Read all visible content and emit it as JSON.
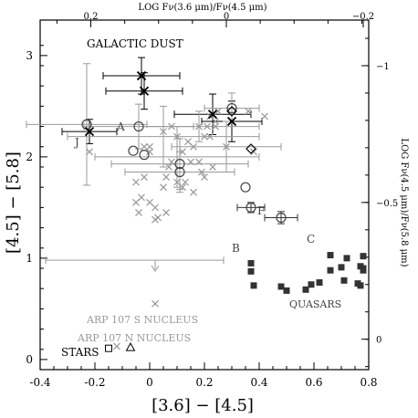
{
  "chart_data": {
    "type": "scatter",
    "xlabel": "[3.6] − [4.5]",
    "ylabel": "[4.5] − [5.8]",
    "top_label": "LOG Fν(3.6 μm)/Fν(4.5 μm)",
    "right_label": "LOG Fν(4.5 μm)/Fν(5.8 μm)",
    "xlim": [
      -0.4,
      0.8
    ],
    "ylim": [
      -0.1,
      3.35
    ],
    "x_ticks": [
      "-0.4",
      "-0.2",
      "0",
      "0.2",
      "0.4",
      "0.6",
      "0.8"
    ],
    "y_ticks": [
      "0",
      "1",
      "2",
      "3"
    ],
    "top_ticks": [
      "0.2",
      "0",
      "−0.2"
    ],
    "right_ticks": [
      "−1",
      "−0.5",
      "0"
    ],
    "annotations": {
      "galactic_dust": "GALACTIC DUST",
      "quasars": "QUASARS",
      "stars": "STARS",
      "arp_s": "ARP 107 S NUCLEUS",
      "arp_n": "ARP 107 N NUCLEUS",
      "lbl_a": "A",
      "lbl_b": "B",
      "lbl_c": "C",
      "lbl_f": "F",
      "lbl_j": "J"
    },
    "series": [
      {
        "name": "gray-crosses",
        "marker": "x",
        "color": "#999999",
        "points": [
          [
            -0.22,
            2.05
          ],
          [
            -0.02,
            2.1
          ],
          [
            0.0,
            2.05
          ],
          [
            -0.05,
            1.75
          ],
          [
            -0.02,
            1.8
          ],
          [
            -0.03,
            1.6
          ],
          [
            -0.05,
            1.55
          ],
          [
            -0.04,
            1.45
          ],
          [
            0.0,
            1.55
          ],
          [
            0.02,
            1.5
          ],
          [
            0.03,
            1.4
          ],
          [
            0.06,
            1.45
          ],
          [
            0.02,
            1.38
          ],
          [
            0.05,
            1.7
          ],
          [
            0.06,
            1.8
          ],
          [
            0.07,
            1.9
          ],
          [
            0.08,
            1.95
          ],
          [
            0.1,
            1.75
          ],
          [
            0.12,
            1.7
          ],
          [
            0.13,
            1.75
          ],
          [
            0.15,
            1.95
          ],
          [
            0.16,
            2.1
          ],
          [
            0.18,
            1.95
          ],
          [
            0.19,
            1.85
          ],
          [
            0.2,
            2.2
          ],
          [
            0.21,
            2.3
          ],
          [
            0.22,
            2.4
          ],
          [
            0.24,
            2.35
          ],
          [
            0.25,
            2.45
          ],
          [
            0.12,
            2.05
          ],
          [
            0.14,
            2.15
          ],
          [
            0.1,
            2.2
          ],
          [
            0.08,
            2.3
          ],
          [
            0.05,
            2.25
          ],
          [
            0.0,
            2.1
          ],
          [
            0.28,
            2.1
          ],
          [
            0.22,
            2.2
          ],
          [
            0.24,
            2.3
          ],
          [
            0.18,
            2.3
          ],
          [
            0.16,
            1.65
          ],
          [
            0.2,
            1.8
          ],
          [
            0.23,
            1.9
          ],
          [
            0.36,
            2.45
          ],
          [
            0.38,
            2.05
          ],
          [
            0.42,
            2.4
          ],
          [
            0.02,
            0.55
          ],
          [
            -0.12,
            0.13
          ]
        ]
      },
      {
        "name": "open-circles",
        "marker": "o",
        "color": "#444444",
        "points": [
          [
            -0.23,
            2.32
          ],
          [
            -0.04,
            2.3
          ],
          [
            -0.06,
            2.06
          ],
          [
            -0.02,
            2.02
          ],
          [
            0.11,
            1.93
          ],
          [
            0.11,
            1.85
          ],
          [
            0.35,
            1.7
          ],
          [
            0.37,
            1.5
          ],
          [
            0.48,
            1.4
          ],
          [
            0.3,
            2.48
          ]
        ]
      },
      {
        "name": "black-crosses",
        "marker": "x",
        "color": "#000000",
        "points": [
          [
            -0.03,
            2.8
          ],
          [
            -0.02,
            2.65
          ],
          [
            0.23,
            2.42
          ],
          [
            0.3,
            2.35
          ],
          [
            -0.22,
            2.25
          ]
        ]
      },
      {
        "name": "diamonds",
        "marker": "diamond",
        "color": "#000000",
        "points": [
          [
            0.3,
            2.45
          ],
          [
            0.37,
            2.08
          ]
        ]
      },
      {
        "name": "quasars",
        "marker": "square-filled",
        "color": "#333333",
        "points": [
          [
            0.37,
            0.95
          ],
          [
            0.37,
            0.87
          ],
          [
            0.38,
            0.73
          ],
          [
            0.48,
            0.72
          ],
          [
            0.5,
            0.68
          ],
          [
            0.57,
            0.69
          ],
          [
            0.59,
            0.74
          ],
          [
            0.62,
            0.76
          ],
          [
            0.66,
            1.03
          ],
          [
            0.66,
            0.88
          ],
          [
            0.7,
            0.91
          ],
          [
            0.71,
            0.78
          ],
          [
            0.72,
            1.0
          ],
          [
            0.76,
            0.75
          ],
          [
            0.77,
            0.92
          ],
          [
            0.78,
            0.9
          ],
          [
            0.78,
            0.88
          ],
          [
            0.77,
            0.73
          ],
          [
            0.78,
            1.02
          ]
        ]
      },
      {
        "name": "stars",
        "marker": "square-open",
        "color": "#000000",
        "points": [
          [
            -0.15,
            0.11
          ]
        ]
      },
      {
        "name": "arp-n",
        "marker": "triangle-open",
        "color": "#000000",
        "points": [
          [
            -0.07,
            0.12
          ]
        ]
      }
    ],
    "error_bars": [
      {
        "x": -0.03,
        "y": 2.8,
        "xerr": 0.14,
        "yerr": 0.18,
        "color": "#000000"
      },
      {
        "x": -0.02,
        "y": 2.65,
        "xerr": 0.14,
        "yerr": 0.18,
        "color": "#000000"
      },
      {
        "x": 0.23,
        "y": 2.42,
        "xerr": 0.14,
        "yerr": 0.2,
        "color": "#000000"
      },
      {
        "x": 0.3,
        "y": 2.35,
        "xerr": 0.11,
        "yerr": 0.2,
        "color": "#000000"
      },
      {
        "x": -0.22,
        "y": 2.25,
        "xerr": 0.1,
        "yerr": 0.12,
        "color": "#000000"
      },
      {
        "x": -0.23,
        "y": 2.32,
        "xerr": 0.22,
        "yerr": 0.6,
        "color": "#999999"
      },
      {
        "x": -0.04,
        "y": 2.3,
        "xerr": 0.2,
        "yerr": 0.22,
        "color": "#999999"
      },
      {
        "x": 0.11,
        "y": 1.93,
        "xerr": 0.25,
        "yerr": 0.25,
        "color": "#999999"
      },
      {
        "x": 0.11,
        "y": 1.85,
        "xerr": 0.2,
        "yerr": 0.2,
        "color": "#999999"
      },
      {
        "x": 0.37,
        "y": 1.5,
        "xerr": 0.05,
        "yerr": 0.05,
        "color": "#333333"
      },
      {
        "x": 0.48,
        "y": 1.4,
        "xerr": 0.06,
        "yerr": 0.06,
        "color": "#333333"
      },
      {
        "x": 0.3,
        "y": 2.48,
        "xerr": 0.1,
        "yerr": 0.15,
        "color": "#999999"
      },
      {
        "x": 0.1,
        "y": 2.0,
        "xerr": 0.3,
        "yerr": 0.3,
        "color": "#999999"
      },
      {
        "x": 0.05,
        "y": 2.2,
        "xerr": 0.35,
        "yerr": 0.3,
        "color": "#999999"
      },
      {
        "x": 0.18,
        "y": 2.3,
        "xerr": 0.22,
        "yerr": 0.15,
        "color": "#999999"
      },
      {
        "x": 0.28,
        "y": 2.1,
        "xerr": 0.2,
        "yerr": 0.25,
        "color": "#999999"
      }
    ],
    "upper_limit": {
      "x": 0.02,
      "y": 0.98,
      "xerr": 0.25,
      "color": "#999999"
    }
  }
}
